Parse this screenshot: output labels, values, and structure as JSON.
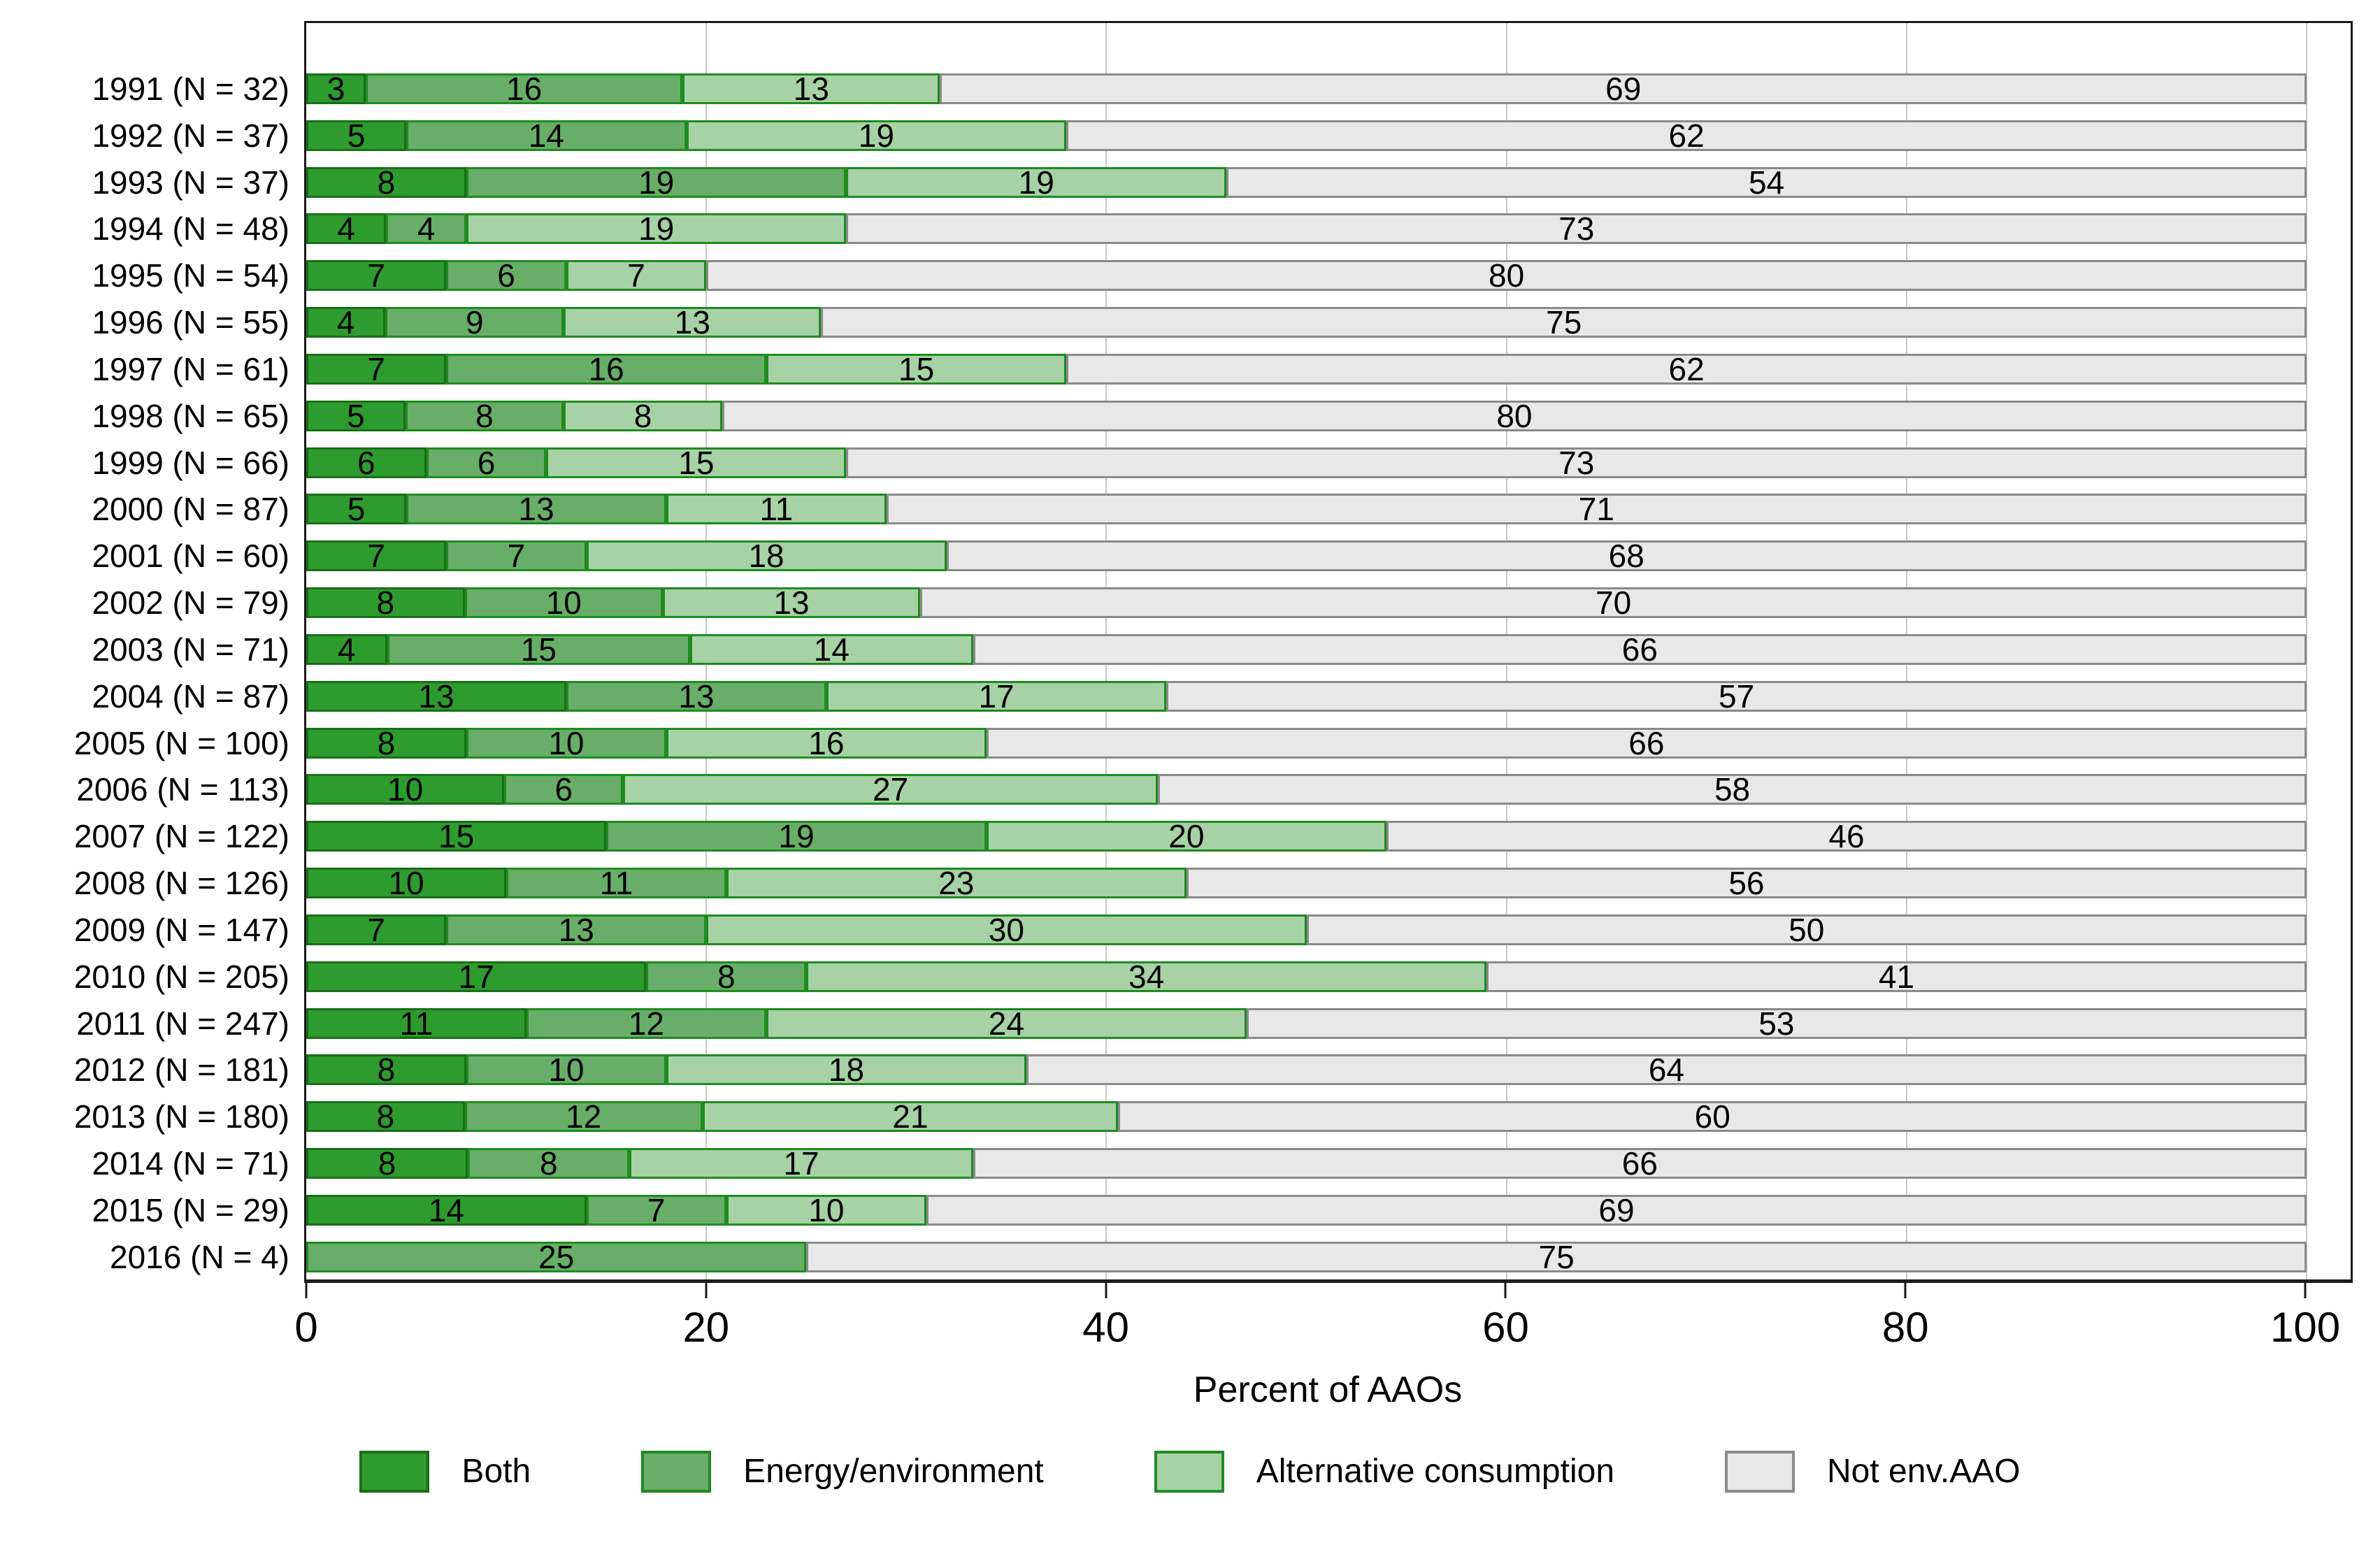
{
  "chart_data": {
    "type": "bar",
    "stacked": true,
    "orientation": "horizontal",
    "title": "",
    "xlabel": "Percent of AAOs",
    "x_ticks": [
      0,
      20,
      40,
      60,
      80,
      100
    ],
    "axis_max": 102.2,
    "bar_total": 100,
    "grid": true,
    "legend_position": "bottom",
    "frame_color": "#1A1A1A",
    "gridline_color": "#C8C8C8",
    "series": [
      {
        "name": "Both",
        "fill": "#2E9B2E",
        "border": "#176F17"
      },
      {
        "name": "Energy/environment",
        "fill": "#68AE68",
        "border": "#1F8B1F"
      },
      {
        "name": "Alternative consumption",
        "fill": "#A6D2A6",
        "border": "#1F8B1F"
      },
      {
        "name": "Not env.AAO",
        "fill": "#E8E8E8",
        "border": "#8A8A8A"
      }
    ],
    "rows": [
      {
        "label": "1991 (N = 32)",
        "values": [
          3,
          16,
          13,
          69
        ]
      },
      {
        "label": "1992 (N = 37)",
        "values": [
          5,
          14,
          19,
          62
        ]
      },
      {
        "label": "1993 (N = 37)",
        "values": [
          8,
          19,
          19,
          54
        ]
      },
      {
        "label": "1994 (N = 48)",
        "values": [
          4,
          4,
          19,
          73
        ]
      },
      {
        "label": "1995 (N = 54)",
        "values": [
          7,
          6,
          7,
          80
        ]
      },
      {
        "label": "1996 (N = 55)",
        "values": [
          4,
          9,
          13,
          75
        ]
      },
      {
        "label": "1997 (N = 61)",
        "values": [
          7,
          16,
          15,
          62
        ]
      },
      {
        "label": "1998 (N = 65)",
        "values": [
          5,
          8,
          8,
          80
        ]
      },
      {
        "label": "1999 (N = 66)",
        "values": [
          6,
          6,
          15,
          73
        ]
      },
      {
        "label": "2000 (N = 87)",
        "values": [
          5,
          13,
          11,
          71
        ]
      },
      {
        "label": "2001 (N = 60)",
        "values": [
          7,
          7,
          18,
          68
        ]
      },
      {
        "label": "2002 (N = 79)",
        "values": [
          8,
          10,
          13,
          70
        ]
      },
      {
        "label": "2003 (N = 71)",
        "values": [
          4,
          15,
          14,
          66
        ]
      },
      {
        "label": "2004 (N = 87)",
        "values": [
          13,
          13,
          17,
          57
        ]
      },
      {
        "label": "2005 (N = 100)",
        "values": [
          8,
          10,
          16,
          66
        ]
      },
      {
        "label": "2006 (N = 113)",
        "values": [
          10,
          6,
          27,
          58
        ]
      },
      {
        "label": "2007 (N = 122)",
        "values": [
          15,
          19,
          20,
          46
        ]
      },
      {
        "label": "2008 (N = 126)",
        "values": [
          10,
          11,
          23,
          56
        ]
      },
      {
        "label": "2009 (N = 147)",
        "values": [
          7,
          13,
          30,
          50
        ]
      },
      {
        "label": "2010 (N = 205)",
        "values": [
          17,
          8,
          34,
          41
        ]
      },
      {
        "label": "2011 (N = 247)",
        "values": [
          11,
          12,
          24,
          53
        ]
      },
      {
        "label": "2012 (N = 181)",
        "values": [
          8,
          10,
          18,
          64
        ]
      },
      {
        "label": "2013 (N = 180)",
        "values": [
          8,
          12,
          21,
          60
        ]
      },
      {
        "label": "2014 (N = 71)",
        "values": [
          8,
          8,
          17,
          66
        ]
      },
      {
        "label": "2015 (N = 29)",
        "values": [
          14,
          7,
          10,
          69
        ]
      },
      {
        "label": "2016 (N = 4)",
        "values": [
          0,
          25,
          0,
          75
        ]
      }
    ]
  }
}
